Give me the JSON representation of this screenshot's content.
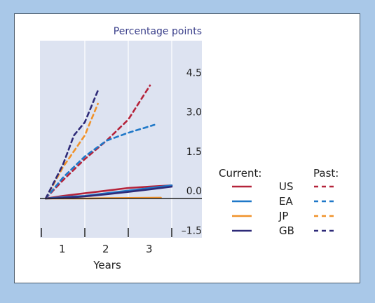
{
  "chart_data": {
    "type": "line",
    "unit_label": "Percentage points",
    "xlabel": "Years",
    "x_ticks": [
      "1",
      "2",
      "3"
    ],
    "y_ticks": [
      "4.5",
      "3.0",
      "1.5",
      "0.0",
      "–1.5"
    ],
    "ylim": [
      -1.5,
      4.5
    ],
    "xlim": [
      0,
      3.4
    ],
    "grid": true,
    "legend": {
      "current_title": "Current:",
      "past_title": "Past:",
      "placement": "right"
    },
    "series": [
      {
        "name": "US",
        "color": "#b5233a",
        "style": "solid",
        "group": "current",
        "points": [
          [
            0.1,
            0
          ],
          [
            0.5,
            0.1
          ],
          [
            1.0,
            0.2
          ],
          [
            1.5,
            0.3
          ],
          [
            2.0,
            0.4
          ],
          [
            2.5,
            0.45
          ],
          [
            3.0,
            0.5
          ]
        ]
      },
      {
        "name": "EA",
        "color": "#1f78c8",
        "style": "solid",
        "group": "current",
        "points": [
          [
            0.1,
            0
          ],
          [
            0.5,
            0.05
          ],
          [
            1.0,
            0.1
          ],
          [
            1.5,
            0.2
          ],
          [
            2.0,
            0.3
          ],
          [
            2.5,
            0.4
          ],
          [
            3.0,
            0.5
          ]
        ]
      },
      {
        "name": "JP",
        "color": "#f0922a",
        "style": "solid",
        "group": "current",
        "points": [
          [
            0.1,
            0
          ],
          [
            0.5,
            0
          ],
          [
            1.0,
            0
          ],
          [
            1.5,
            0.01
          ],
          [
            2.0,
            0.02
          ],
          [
            2.75,
            0.03
          ]
        ]
      },
      {
        "name": "GB",
        "color": "#2e2a78",
        "style": "solid",
        "group": "current",
        "points": [
          [
            0.1,
            0
          ],
          [
            0.5,
            0.02
          ],
          [
            1.0,
            0.08
          ],
          [
            1.5,
            0.16
          ],
          [
            2.0,
            0.25
          ],
          [
            2.5,
            0.35
          ],
          [
            3.0,
            0.45
          ]
        ]
      },
      {
        "name": "US",
        "color": "#b5233a",
        "style": "dashed",
        "group": "past",
        "points": [
          [
            0.1,
            0
          ],
          [
            0.5,
            0.7
          ],
          [
            1.0,
            1.5
          ],
          [
            1.5,
            2.2
          ],
          [
            2.0,
            3.0
          ],
          [
            2.5,
            4.3
          ]
        ]
      },
      {
        "name": "EA",
        "color": "#1f78c8",
        "style": "dashed",
        "group": "past",
        "points": [
          [
            0.1,
            0
          ],
          [
            0.5,
            0.8
          ],
          [
            1.0,
            1.6
          ],
          [
            1.5,
            2.2
          ],
          [
            2.0,
            2.5
          ],
          [
            2.6,
            2.8
          ]
        ]
      },
      {
        "name": "JP",
        "color": "#f0922a",
        "style": "dashed",
        "group": "past",
        "points": [
          [
            0.1,
            0
          ],
          [
            0.5,
            1.2
          ],
          [
            1.0,
            2.4
          ],
          [
            1.3,
            3.6
          ]
        ]
      },
      {
        "name": "GB",
        "color": "#2e2a78",
        "style": "dashed",
        "group": "past",
        "points": [
          [
            0.1,
            0
          ],
          [
            0.5,
            1.3
          ],
          [
            0.75,
            2.4
          ],
          [
            1.0,
            2.9
          ],
          [
            1.3,
            4.1
          ]
        ]
      }
    ]
  }
}
